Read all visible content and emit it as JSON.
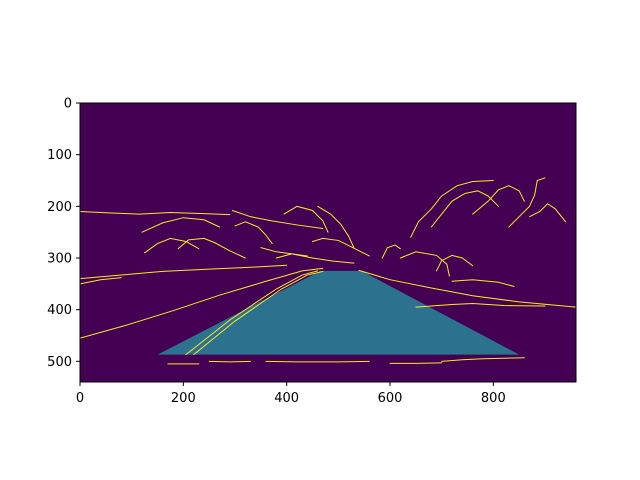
{
  "chart_data": {
    "type": "heatmap",
    "description_kind": "image",
    "title": "",
    "xlabel": "",
    "ylabel": "",
    "xlim": [
      0,
      960
    ],
    "ylim": [
      540,
      0
    ],
    "xticks": [
      0,
      200,
      400,
      600,
      800
    ],
    "yticks": [
      0,
      100,
      200,
      300,
      400,
      500
    ],
    "colormap": {
      "background": "#440154",
      "region": "#2c728e",
      "edges": "#fde725"
    },
    "region_polygon": [
      [
        150,
        487
      ],
      [
        465,
        325
      ],
      [
        545,
        325
      ],
      [
        850,
        487
      ]
    ],
    "edge_polylines": [
      [
        [
          0,
          210
        ],
        [
          60,
          213
        ],
        [
          115,
          215
        ],
        [
          175,
          212
        ],
        [
          240,
          214
        ],
        [
          290,
          216
        ]
      ],
      [
        [
          0,
          340
        ],
        [
          80,
          333
        ],
        [
          160,
          326
        ],
        [
          240,
          322
        ],
        [
          330,
          318
        ],
        [
          400,
          314
        ]
      ],
      [
        [
          0,
          455
        ],
        [
          90,
          430
        ],
        [
          180,
          402
        ],
        [
          270,
          372
        ],
        [
          360,
          345
        ],
        [
          430,
          325
        ],
        [
          470,
          320
        ]
      ],
      [
        [
          205,
          487
        ],
        [
          290,
          420
        ],
        [
          380,
          360
        ],
        [
          430,
          333
        ],
        [
          460,
          325
        ]
      ],
      [
        [
          220,
          487
        ],
        [
          300,
          422
        ],
        [
          390,
          360
        ],
        [
          440,
          333
        ],
        [
          470,
          326
        ]
      ],
      [
        [
          540,
          324
        ],
        [
          600,
          342
        ],
        [
          680,
          358
        ],
        [
          760,
          373
        ],
        [
          850,
          385
        ],
        [
          960,
          395
        ]
      ],
      [
        [
          120,
          250
        ],
        [
          160,
          232
        ],
        [
          200,
          222
        ],
        [
          240,
          226
        ],
        [
          270,
          240
        ]
      ],
      [
        [
          125,
          290
        ],
        [
          150,
          272
        ],
        [
          175,
          262
        ],
        [
          205,
          268
        ],
        [
          230,
          282
        ]
      ],
      [
        [
          190,
          282
        ],
        [
          210,
          265
        ],
        [
          240,
          262
        ],
        [
          260,
          270
        ],
        [
          290,
          286
        ],
        [
          320,
          300
        ]
      ],
      [
        [
          295,
          208
        ],
        [
          330,
          220
        ],
        [
          370,
          228
        ],
        [
          420,
          236
        ],
        [
          470,
          243
        ]
      ],
      [
        [
          300,
          238
        ],
        [
          320,
          230
        ],
        [
          345,
          240
        ],
        [
          360,
          256
        ],
        [
          372,
          272
        ]
      ],
      [
        [
          380,
          300
        ],
        [
          410,
          292
        ],
        [
          450,
          300
        ],
        [
          490,
          306
        ],
        [
          530,
          310
        ]
      ],
      [
        [
          395,
          215
        ],
        [
          420,
          200
        ],
        [
          450,
          208
        ],
        [
          470,
          228
        ],
        [
          480,
          250
        ]
      ],
      [
        [
          620,
          300
        ],
        [
          650,
          288
        ],
        [
          690,
          295
        ],
        [
          710,
          312
        ],
        [
          715,
          335
        ]
      ],
      [
        [
          690,
          325
        ],
        [
          700,
          305
        ],
        [
          720,
          295
        ],
        [
          740,
          300
        ],
        [
          760,
          315
        ]
      ],
      [
        [
          720,
          345
        ],
        [
          760,
          342
        ],
        [
          810,
          347
        ],
        [
          840,
          355
        ]
      ],
      [
        [
          640,
          260
        ],
        [
          655,
          230
        ],
        [
          680,
          205
        ],
        [
          700,
          180
        ],
        [
          730,
          160
        ],
        [
          760,
          152
        ],
        [
          800,
          150
        ]
      ],
      [
        [
          680,
          240
        ],
        [
          700,
          215
        ],
        [
          720,
          190
        ],
        [
          745,
          175
        ],
        [
          770,
          170
        ],
        [
          790,
          180
        ],
        [
          810,
          200
        ]
      ],
      [
        [
          760,
          215
        ],
        [
          790,
          190
        ],
        [
          810,
          168
        ],
        [
          830,
          160
        ],
        [
          850,
          170
        ],
        [
          860,
          190
        ]
      ],
      [
        [
          830,
          240
        ],
        [
          850,
          220
        ],
        [
          870,
          200
        ],
        [
          880,
          178
        ],
        [
          885,
          150
        ],
        [
          900,
          145
        ]
      ],
      [
        [
          870,
          220
        ],
        [
          890,
          210
        ],
        [
          905,
          195
        ],
        [
          920,
          205
        ],
        [
          940,
          230
        ]
      ],
      [
        [
          460,
          200
        ],
        [
          485,
          215
        ],
        [
          505,
          235
        ],
        [
          520,
          258
        ],
        [
          530,
          280
        ]
      ],
      [
        [
          650,
          395
        ],
        [
          680,
          393
        ],
        [
          720,
          390
        ],
        [
          760,
          388
        ],
        [
          820,
          392
        ],
        [
          900,
          393
        ]
      ],
      [
        [
          360,
          500
        ],
        [
          420,
          501
        ],
        [
          500,
          501
        ],
        [
          560,
          500
        ]
      ],
      [
        [
          250,
          500
        ],
        [
          290,
          501
        ],
        [
          330,
          500
        ]
      ],
      [
        [
          600,
          504
        ],
        [
          650,
          504
        ],
        [
          700,
          503
        ]
      ],
      [
        [
          450,
          268
        ],
        [
          470,
          262
        ],
        [
          500,
          266
        ],
        [
          520,
          276
        ],
        [
          540,
          286
        ],
        [
          560,
          296
        ]
      ],
      [
        [
          350,
          280
        ],
        [
          380,
          288
        ],
        [
          410,
          292
        ],
        [
          440,
          296
        ]
      ],
      [
        [
          585,
          300
        ],
        [
          595,
          280
        ],
        [
          610,
          275
        ],
        [
          620,
          282
        ]
      ],
      [
        [
          700,
          500
        ],
        [
          740,
          497
        ],
        [
          780,
          495
        ],
        [
          820,
          494
        ],
        [
          860,
          493
        ]
      ],
      [
        [
          0,
          350
        ],
        [
          40,
          342
        ],
        [
          80,
          338
        ]
      ],
      [
        [
          170,
          505
        ],
        [
          200,
          505
        ],
        [
          230,
          505
        ]
      ]
    ]
  }
}
